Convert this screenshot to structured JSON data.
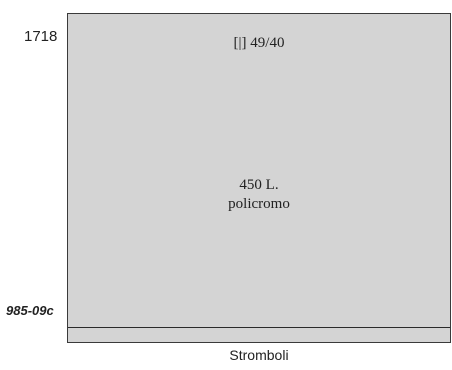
{
  "catalog_number": "1718",
  "variety_code": "985-09c",
  "stamp": {
    "reference": "[|] 49/40",
    "value": "450 L.",
    "color_description": "policromo"
  },
  "caption": "Stromboli"
}
